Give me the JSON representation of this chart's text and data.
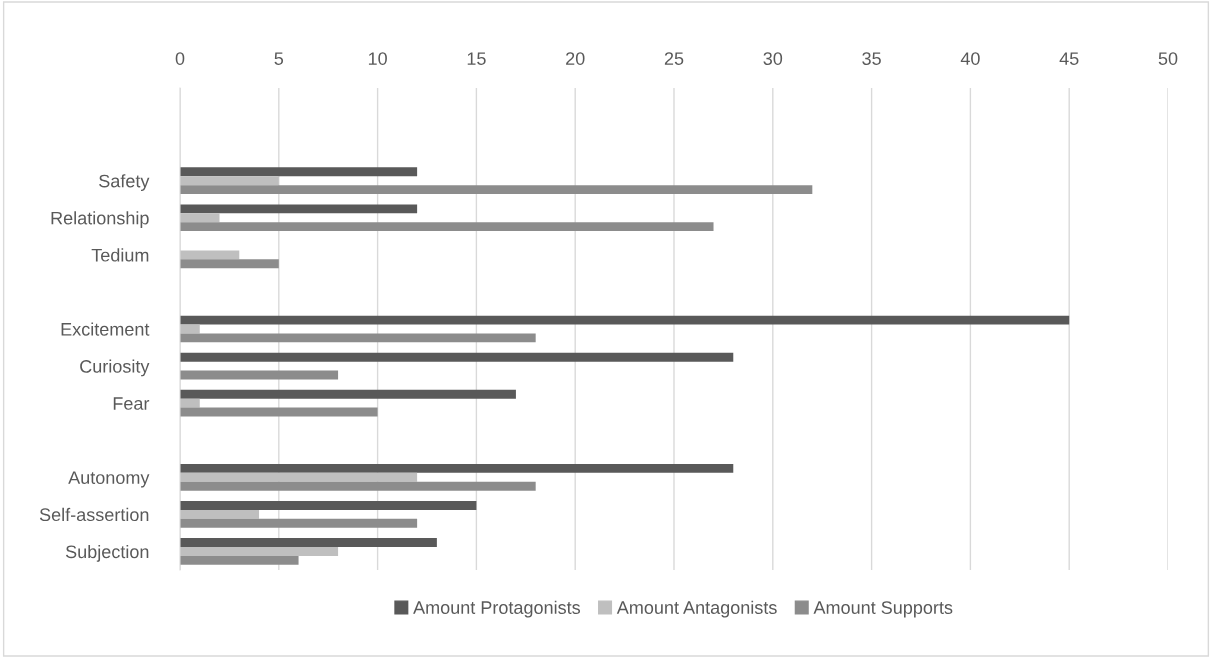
{
  "chart_data": {
    "type": "bar",
    "orientation": "horizontal",
    "categories": [
      null,
      null,
      "Safety",
      "Relationship",
      "Tedium",
      null,
      "Excitement",
      "Curiosity",
      "Fear",
      null,
      "Autonomy",
      "Self-assertion",
      "Subjection"
    ],
    "series": [
      {
        "name": "Amount Protagonists",
        "color": "#595959",
        "values": [
          null,
          null,
          12,
          12,
          0,
          null,
          45,
          28,
          17,
          null,
          28,
          15,
          13
        ]
      },
      {
        "name": "Amount Antagonists",
        "color": "#bfbfbf",
        "values": [
          null,
          null,
          5,
          2,
          3,
          null,
          1,
          0,
          1,
          null,
          12,
          4,
          8
        ]
      },
      {
        "name": "Amount Supports",
        "color": "#8c8c8c",
        "values": [
          null,
          null,
          32,
          27,
          5,
          null,
          18,
          8,
          10,
          null,
          18,
          12,
          6
        ]
      }
    ],
    "xlim": [
      0,
      50
    ],
    "xticks": [
      0,
      5,
      10,
      15,
      20,
      25,
      30,
      35,
      40,
      45,
      50
    ],
    "grid": "x",
    "legend": "bottom"
  }
}
